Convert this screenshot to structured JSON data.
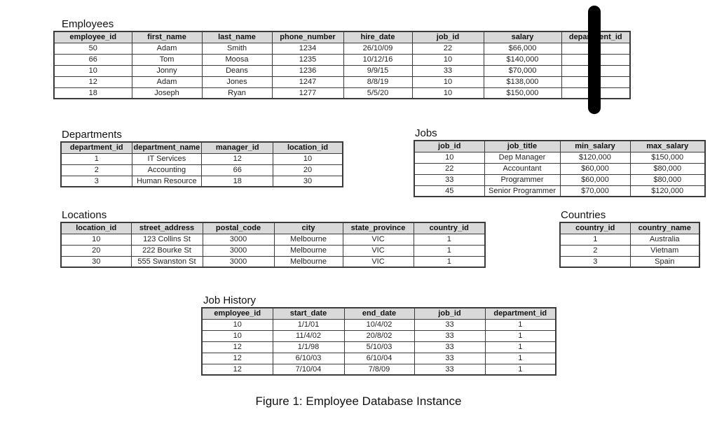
{
  "figure": {
    "caption": "Figure 1: Employee Database Instance"
  },
  "colors": {
    "header_bg": "#d9d9d9",
    "table_border": "#3b3b3b",
    "text": "#1a1a1a",
    "redaction_mark": "#000000",
    "background": "#ffffff"
  },
  "redaction": {
    "description": "black-marker-bar-over-employees-department_id-column"
  },
  "tables": {
    "employees": {
      "title": "Employees",
      "headers": [
        "employee_id",
        "first_name",
        "last_name",
        "phone_number",
        "hire_date",
        "job_id",
        "salary",
        "department_id"
      ],
      "rows": [
        [
          "50",
          "Adam",
          "Smith",
          "1234",
          "26/10/09",
          "22",
          "$66,000",
          ""
        ],
        [
          "66",
          "Tom",
          "Moosa",
          "1235",
          "10/12/16",
          "10",
          "$140,000",
          ""
        ],
        [
          "10",
          "Jonny",
          "Deans",
          "1236",
          "9/9/15",
          "33",
          "$70,000",
          ""
        ],
        [
          "12",
          "Adam",
          "Jones",
          "1247",
          "8/8/19",
          "10",
          "$138,000",
          ""
        ],
        [
          "18",
          "Joseph",
          "Ryan",
          "1277",
          "5/5/20",
          "10",
          "$150,000",
          ""
        ]
      ]
    },
    "departments": {
      "title": "Departments",
      "headers": [
        "department_id",
        "department_name",
        "manager_id",
        "location_id"
      ],
      "rows": [
        [
          "1",
          "IT Services",
          "12",
          "10"
        ],
        [
          "2",
          "Accounting",
          "66",
          "20"
        ],
        [
          "3",
          "Human Resource",
          "18",
          "30"
        ]
      ]
    },
    "jobs": {
      "title": "Jobs",
      "headers": [
        "job_id",
        "job_title",
        "min_salary",
        "max_salary"
      ],
      "rows": [
        [
          "10",
          "Dep Manager",
          "$120,000",
          "$150,000"
        ],
        [
          "22",
          "Accountant",
          "$60,000",
          "$80,000"
        ],
        [
          "33",
          "Programmer",
          "$60,000",
          "$80,000"
        ],
        [
          "45",
          "Senior Programmer",
          "$70,000",
          "$120,000"
        ]
      ]
    },
    "locations": {
      "title": "Locations",
      "headers": [
        "location_id",
        "street_address",
        "postal_code",
        "city",
        "state_province",
        "country_id"
      ],
      "rows": [
        [
          "10",
          "123 Collins St",
          "3000",
          "Melbourne",
          "VIC",
          "1"
        ],
        [
          "20",
          "222 Bourke St",
          "3000",
          "Melbourne",
          "VIC",
          "1"
        ],
        [
          "30",
          "555 Swanston St",
          "3000",
          "Melbourne",
          "VIC",
          "1"
        ]
      ]
    },
    "countries": {
      "title": "Countries",
      "headers": [
        "country_id",
        "country_name"
      ],
      "rows": [
        [
          "1",
          "Australia"
        ],
        [
          "2",
          "Vietnam"
        ],
        [
          "3",
          "Spain"
        ]
      ]
    },
    "job_history": {
      "title": "Job History",
      "headers": [
        "employee_id",
        "start_date",
        "end_date",
        "job_id",
        "department_id"
      ],
      "rows": [
        [
          "10",
          "1/1/01",
          "10/4/02",
          "33",
          "1"
        ],
        [
          "10",
          "11/4/02",
          "20/8/02",
          "33",
          "1"
        ],
        [
          "12",
          "1/1/98",
          "5/10/03",
          "33",
          "1"
        ],
        [
          "12",
          "6/10/03",
          "6/10/04",
          "33",
          "1"
        ],
        [
          "12",
          "7/10/04",
          "7/8/09",
          "33",
          "1"
        ]
      ]
    }
  }
}
